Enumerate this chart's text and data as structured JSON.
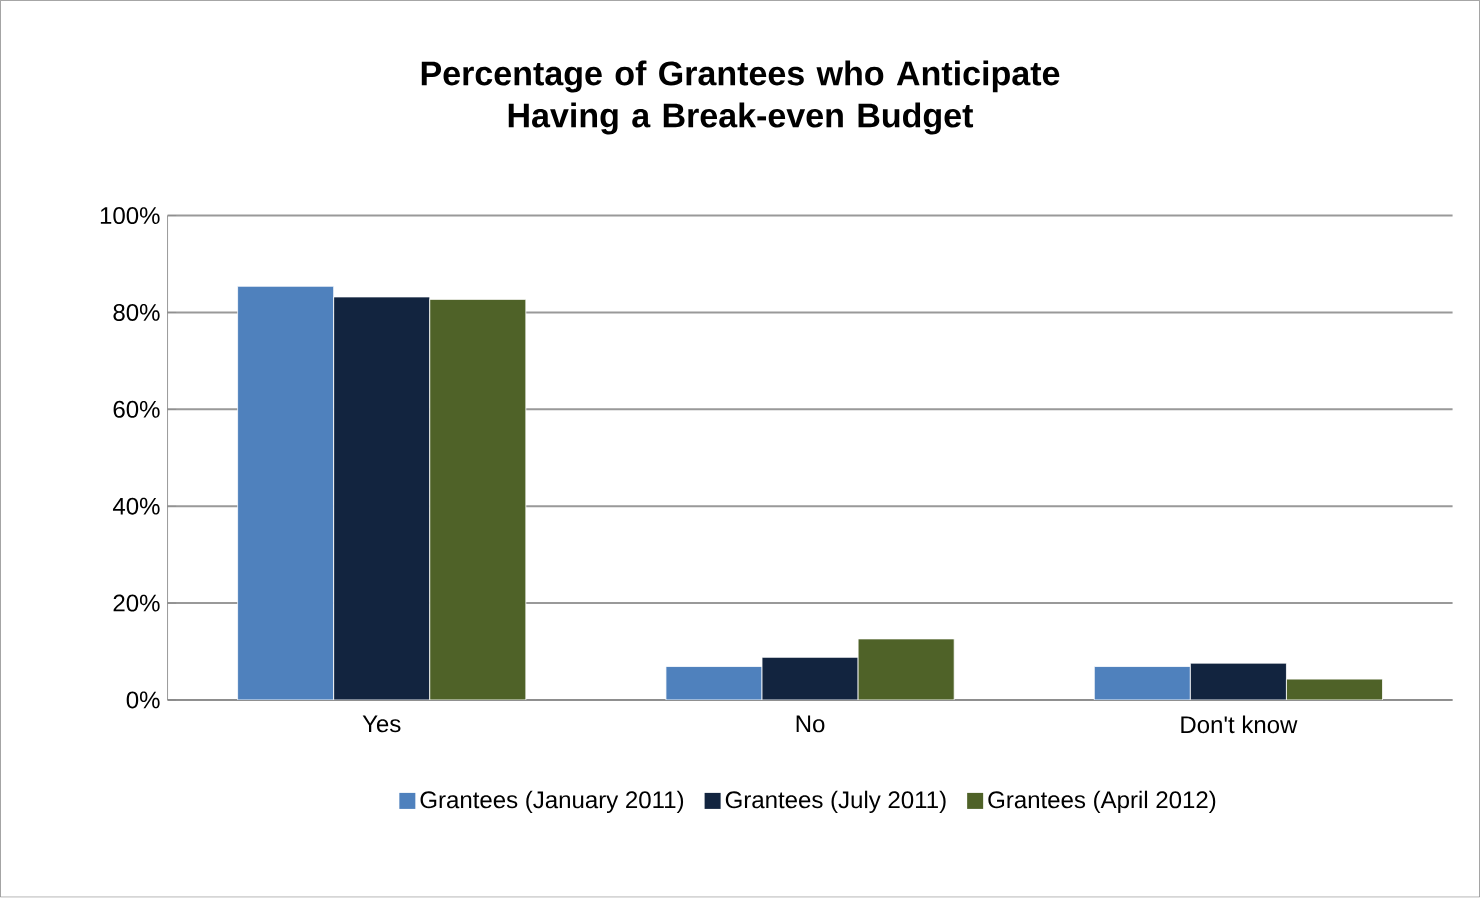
{
  "chart_data": {
    "type": "bar",
    "title": "Percentage of Grantees who Anticipate Having a Break-even Budget",
    "categories": [
      "Yes",
      "No",
      "Don't know"
    ],
    "series": [
      {
        "name": "Grantees (January 2011)",
        "color": "#4f81bd",
        "values": [
          85.4,
          6.9,
          6.9
        ]
      },
      {
        "name": "Grantees (July 2011)",
        "color": "#12243f",
        "values": [
          83.2,
          8.8,
          7.6
        ]
      },
      {
        "name": "Grantees (April 2012)",
        "color": "#4f6228",
        "values": [
          82.7,
          12.6,
          4.3
        ]
      }
    ],
    "ylim": [
      0,
      100
    ],
    "yticks": [
      {
        "value": 0,
        "label": "0%"
      },
      {
        "value": 20,
        "label": "20%"
      },
      {
        "value": 40,
        "label": "40%"
      },
      {
        "value": 60,
        "label": "60%"
      },
      {
        "value": 80,
        "label": "80%"
      },
      {
        "value": 100,
        "label": "100%"
      }
    ],
    "grid": "y",
    "legend": "bottom"
  }
}
